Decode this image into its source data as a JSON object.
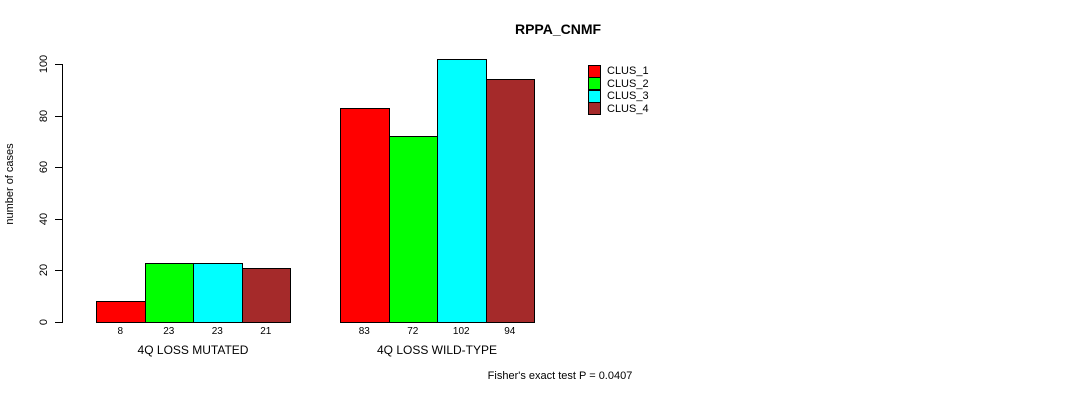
{
  "title": "RPPA_CNMF",
  "chart_data": {
    "type": "bar",
    "groups": [
      "4Q LOSS MUTATED",
      "4Q LOSS WILD-TYPE"
    ],
    "series": [
      {
        "name": "CLUS_1",
        "color": "#ff0000",
        "values": [
          8,
          83
        ]
      },
      {
        "name": "CLUS_2",
        "color": "#00ff00",
        "values": [
          23,
          72
        ]
      },
      {
        "name": "CLUS_3",
        "color": "#00ffff",
        "values": [
          23,
          102
        ]
      },
      {
        "name": "CLUS_4",
        "color": "#a52a2a",
        "values": [
          21,
          94
        ]
      }
    ],
    "ylabel": "number of cases",
    "yticks": [
      0,
      20,
      40,
      60,
      80,
      100
    ],
    "ylim": [
      0,
      100
    ],
    "bar_value_labels": true,
    "legend_position": "top-right",
    "grid": false,
    "annotation": "Fisher's exact test P = 0.0407"
  }
}
